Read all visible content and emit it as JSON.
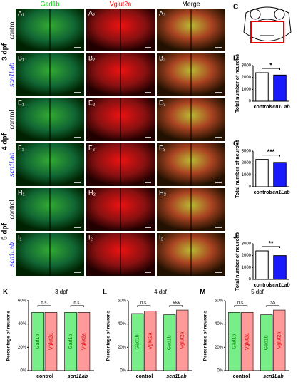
{
  "column_headers": [
    "Gad1b",
    "Vglut2a",
    "Merge"
  ],
  "group_labels": [
    "3 dpf",
    "4 dpf",
    "5 dpf"
  ],
  "row_labels": [
    "control",
    "scn1Lab",
    "control",
    "scn1Lab",
    "control",
    "scn1Lab"
  ],
  "image_labels": [
    [
      "A₁",
      "A₂",
      "A₃"
    ],
    [
      "B₁",
      "B₂",
      "B₃"
    ],
    [
      "E₁",
      "E₂",
      "E₃"
    ],
    [
      "F₁",
      "F₂",
      "F₃"
    ],
    [
      "H₁",
      "H₂",
      "H₃"
    ],
    [
      "I₁",
      "I₂",
      "I₃"
    ]
  ],
  "schematic_label": "C",
  "chart_data": [
    {
      "type": "bar",
      "panel": "D",
      "ylabel": "Total number of neurons",
      "categories": [
        "control",
        "scn1Lab"
      ],
      "values": [
        2400,
        2200
      ],
      "colors": [
        "#ffffff",
        "#1a1aff"
      ],
      "ylim": [
        0,
        3000
      ],
      "yticks": [
        0,
        1000,
        2000,
        3000
      ],
      "significance": "*"
    },
    {
      "type": "bar",
      "panel": "G",
      "ylabel": "Total number of neurons",
      "categories": [
        "control",
        "scn1Lab"
      ],
      "values": [
        2300,
        2050
      ],
      "colors": [
        "#ffffff",
        "#1a1aff"
      ],
      "ylim": [
        0,
        3000
      ],
      "yticks": [
        0,
        1000,
        2000,
        3000
      ],
      "significance": "***"
    },
    {
      "type": "bar",
      "panel": "J",
      "ylabel": "Total number of neurons",
      "categories": [
        "control",
        "scn1Lab"
      ],
      "values": [
        2400,
        2000
      ],
      "colors": [
        "#ffffff",
        "#1a1aff"
      ],
      "ylim": [
        0,
        3000
      ],
      "yticks": [
        0,
        1000,
        2000,
        3000
      ],
      "significance": "**"
    },
    {
      "type": "grouped_bar",
      "panel": "K",
      "title": "3 dpf",
      "ylabel": "Percentage of neurons",
      "categories": [
        "control",
        "scn1Lab"
      ],
      "series": [
        {
          "name": "Gad1b",
          "color": "#77ee88",
          "values": [
            50,
            50
          ]
        },
        {
          "name": "Vglut2a",
          "color": "#ff9a9a",
          "values": [
            50,
            50
          ]
        }
      ],
      "ylim": [
        0,
        60
      ],
      "yticks": [
        {
          "value": 0,
          "label": "0%"
        },
        {
          "value": 20,
          "label": "20%"
        },
        {
          "value": 40,
          "label": "40%"
        },
        {
          "value": 60,
          "label": "60%"
        }
      ],
      "annotations": [
        "n.s.",
        "n.s."
      ]
    },
    {
      "type": "grouped_bar",
      "panel": "L",
      "title": "4 dpf",
      "ylabel": "Percentage of neurons",
      "categories": [
        "control",
        "scn1Lab"
      ],
      "series": [
        {
          "name": "Gad1b",
          "color": "#77ee88",
          "values": [
            49,
            48
          ]
        },
        {
          "name": "Vglut2a",
          "color": "#ff9a9a",
          "values": [
            51,
            52
          ]
        }
      ],
      "ylim": [
        0,
        60
      ],
      "yticks": [
        {
          "value": 0,
          "label": "0%"
        },
        {
          "value": 20,
          "label": "20%"
        },
        {
          "value": 40,
          "label": "40%"
        },
        {
          "value": 60,
          "label": "60%"
        }
      ],
      "annotations": [
        "n.s.",
        "$$$"
      ]
    },
    {
      "type": "grouped_bar",
      "panel": "M",
      "title": "5 dpf",
      "ylabel": "Percentage of neurons",
      "categories": [
        "control",
        "scn1Lab"
      ],
      "series": [
        {
          "name": "Gad1b",
          "color": "#77ee88",
          "values": [
            50,
            48
          ]
        },
        {
          "name": "Vglut2a",
          "color": "#ff9a9a",
          "values": [
            50,
            52
          ]
        }
      ],
      "ylim": [
        0,
        60
      ],
      "yticks": [
        {
          "value": 0,
          "label": "0%"
        },
        {
          "value": 20,
          "label": "20%"
        },
        {
          "value": 40,
          "label": "40%"
        },
        {
          "value": 60,
          "label": "60%"
        }
      ],
      "annotations": [
        "n.s.",
        "$$"
      ]
    }
  ]
}
